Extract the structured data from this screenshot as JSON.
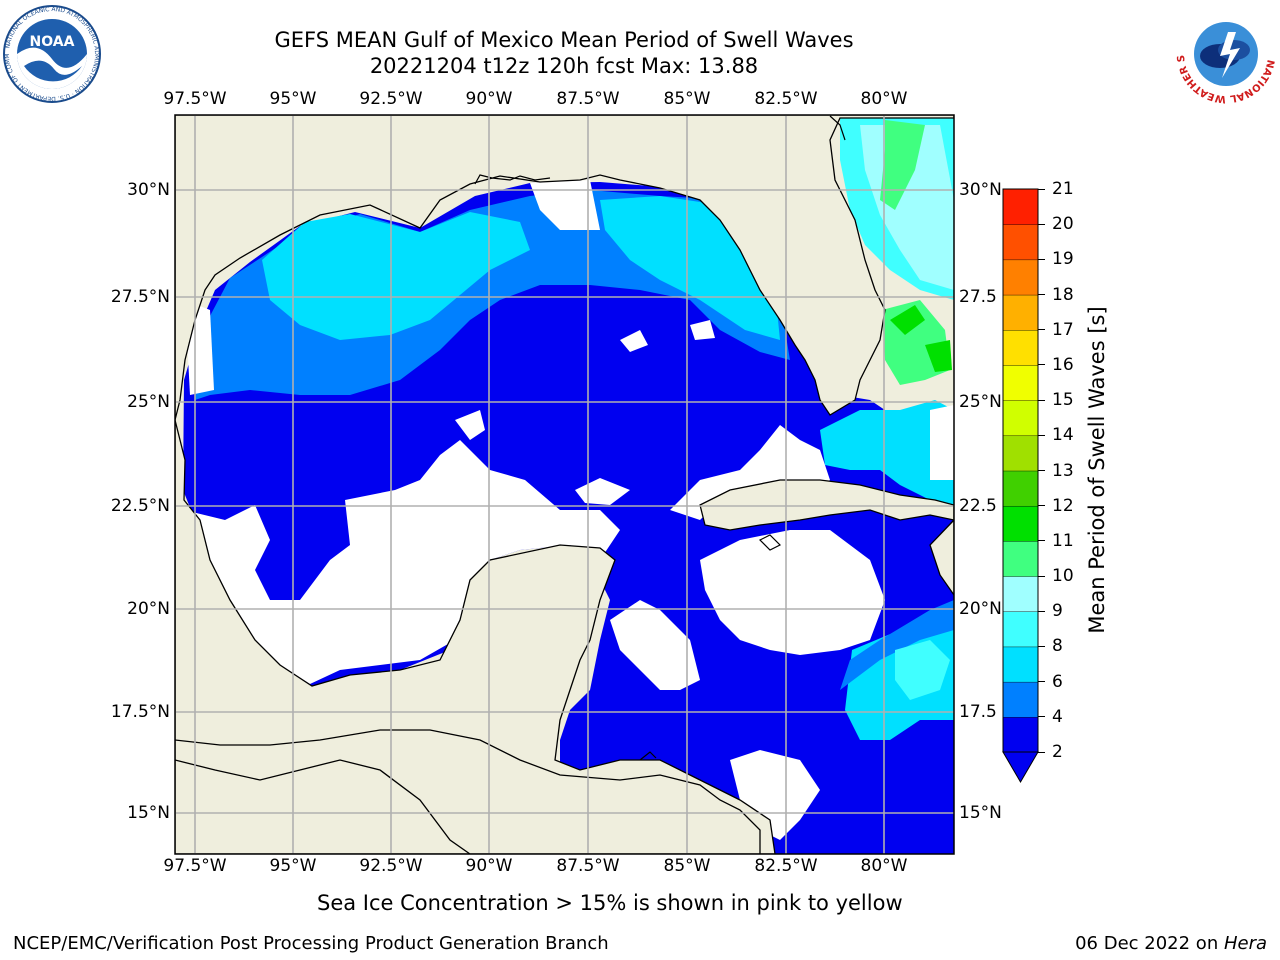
{
  "header": {
    "title_line1": "GEFS MEAN Gulf of Mexico Mean Period of Swell Waves",
    "title_line2": "20221204 t12z 120h fcst   Max: 13.88"
  },
  "logos": {
    "left": {
      "name": "noaa-logo",
      "text": "NOAA",
      "ring_text": "NATIONAL OCEANIC AND ATMOSPHERIC ADMINISTRATION · U.S. DEPARTMENT OF COMMERCE"
    },
    "right": {
      "name": "nws-logo",
      "ring_text": "NATIONAL WEATHER SERVICE"
    }
  },
  "map": {
    "lon_labels": [
      "97.5°W",
      "95°W",
      "92.5°W",
      "90°W",
      "87.5°W",
      "85°W",
      "82.5°W",
      "80°W"
    ],
    "lat_labels": [
      "30°N",
      "27.5°N",
      "25°N",
      "22.5°N",
      "20°N",
      "17.5°N",
      "15°N"
    ],
    "lat_labels_right": [
      "30°N",
      "27.5",
      "25°N",
      "22.5",
      "20°N",
      "17.5",
      "15°N"
    ],
    "colors": {
      "land": "#efeedd",
      "no_data": "#ffffff",
      "grid": "#b0b0b0",
      "coast": "#000000"
    }
  },
  "colorbar": {
    "label": "Mean Period of Swell Waves [s]",
    "ticks": [
      "2",
      "4",
      "6",
      "8",
      "9",
      "10",
      "11",
      "12",
      "13",
      "14",
      "15",
      "16",
      "17",
      "18",
      "19",
      "20",
      "21"
    ],
    "levels": [
      2,
      4,
      6,
      8,
      9,
      10,
      11,
      12,
      13,
      14,
      15,
      16,
      17,
      18,
      19,
      20,
      21
    ],
    "colors": [
      "#0000f0",
      "#0080ff",
      "#00e0ff",
      "#40ffff",
      "#a0ffff",
      "#40ff80",
      "#00e000",
      "#40d000",
      "#a0e000",
      "#d0ff00",
      "#f0ff00",
      "#ffe000",
      "#ffb000",
      "#ff8000",
      "#ff5000",
      "#ff2000",
      "#ff0000"
    ],
    "extend_color": "#0000f0"
  },
  "footer": {
    "note": "Sea Ice Concentration > 15% is shown in pink to yellow",
    "left": "NCEP/EMC/Verification Post Processing Product Generation Branch",
    "right_date": "06 Dec 2022 on ",
    "right_host": "Hera"
  }
}
